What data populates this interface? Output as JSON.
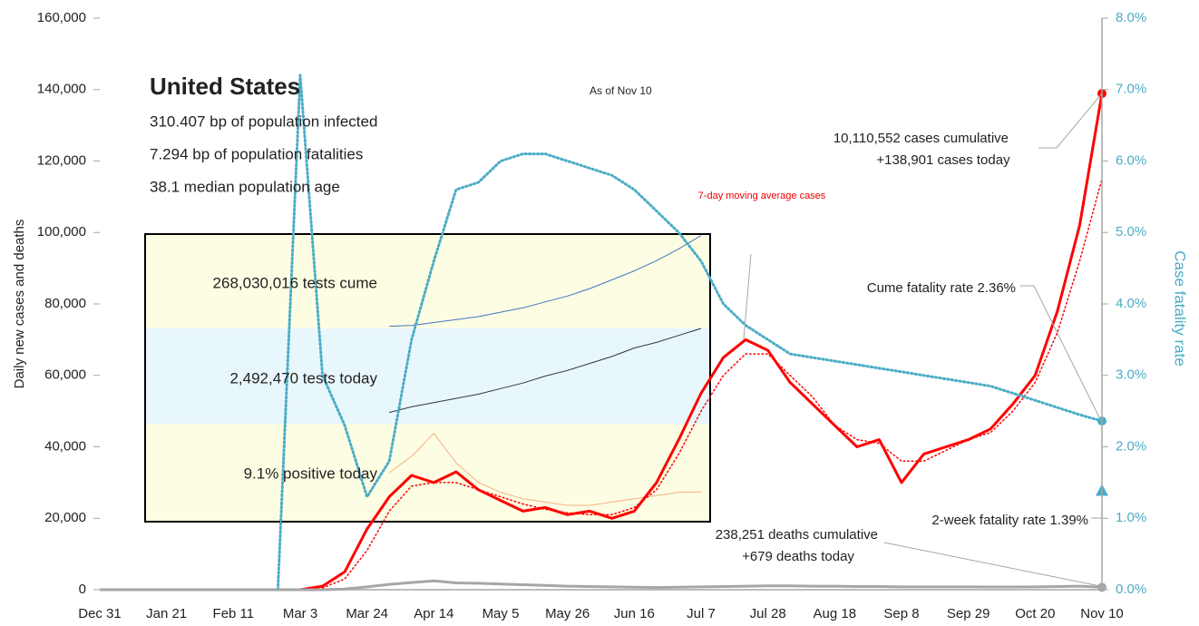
{
  "chart_data": {
    "type": "line",
    "ylabel": "Daily new cases and deaths",
    "y2label": "Case fatality rate",
    "categories": [
      "Dec 31",
      null,
      null,
      "Jan 21",
      null,
      null,
      "Feb 11",
      null,
      null,
      "Mar 3",
      null,
      null,
      "Mar 24",
      null,
      null,
      "Apr 14",
      null,
      null,
      "May 5",
      null,
      null,
      "May 26",
      null,
      null,
      "Jun 16",
      null,
      null,
      "Jul 7",
      null,
      null,
      "Jul 28",
      null,
      null,
      "Aug 18",
      null,
      null,
      "Sep 8",
      null,
      null,
      "Sep 29",
      null,
      null,
      "Oct 20",
      null,
      null,
      "Nov 10"
    ],
    "ylim": [
      0,
      160000
    ],
    "yticks": [
      {
        "value": 0,
        "label": "0"
      },
      {
        "value": 20000,
        "label": "20,000"
      },
      {
        "value": 40000,
        "label": "40,000"
      },
      {
        "value": 60000,
        "label": "60,000"
      },
      {
        "value": 80000,
        "label": "80,000"
      },
      {
        "value": 100000,
        "label": "100,000"
      },
      {
        "value": 120000,
        "label": "120,000"
      },
      {
        "value": 140000,
        "label": "140,000"
      },
      {
        "value": 160000,
        "label": "160,000"
      }
    ],
    "y2lim": [
      0,
      8
    ],
    "y2ticks": [
      {
        "value": 0,
        "label": "0.0%"
      },
      {
        "value": 1,
        "label": "1.0%"
      },
      {
        "value": 2,
        "label": "2.0%"
      },
      {
        "value": 3,
        "label": "3.0%"
      },
      {
        "value": 4,
        "label": "4.0%"
      },
      {
        "value": 5,
        "label": "5.0%"
      },
      {
        "value": 6,
        "label": "6.0%"
      },
      {
        "value": 7,
        "label": "7.0%"
      },
      {
        "value": 8,
        "label": "8.0%"
      }
    ],
    "series": [
      {
        "color": "#ff0000",
        "style": "solid",
        "values": [
          0,
          0,
          0,
          0,
          0,
          0,
          0,
          0,
          0,
          0,
          1000,
          5000,
          17000,
          26000,
          32000,
          30000,
          33000,
          28000,
          25000,
          22000,
          23000,
          21000,
          22000,
          20000,
          22000,
          30000,
          42000,
          55000,
          65000,
          70000,
          67000,
          58000,
          52000,
          46000,
          40000,
          42000,
          30000,
          38000,
          40000,
          42000,
          45000,
          52000,
          60000,
          78000,
          102000,
          138901
        ]
      },
      {
        "name": "7-day moving average cases",
        "color": "#ff0000",
        "style": "dotted",
        "values": [
          null,
          null,
          null,
          null,
          null,
          null,
          null,
          null,
          null,
          null,
          500,
          3000,
          11000,
          22000,
          29000,
          30000,
          30000,
          28000,
          26000,
          24000,
          22500,
          21500,
          21000,
          21000,
          23000,
          28000,
          38000,
          50000,
          60000,
          66000,
          66000,
          60000,
          54000,
          46000,
          42000,
          41000,
          36000,
          36000,
          39000,
          42000,
          44000,
          50000,
          58000,
          72000,
          92000,
          115000
        ]
      },
      {
        "color": "#a6a6a6",
        "style": "solid",
        "values": [
          0,
          0,
          0,
          0,
          0,
          0,
          0,
          0,
          0,
          0,
          0,
          200,
          800,
          1500,
          2000,
          2500,
          1900,
          1800,
          1600,
          1400,
          1200,
          1000,
          900,
          800,
          700,
          600,
          700,
          800,
          900,
          1000,
          1100,
          1100,
          1000,
          1000,
          900,
          900,
          800,
          800,
          800,
          800,
          750,
          750,
          800,
          900,
          1000,
          679
        ]
      },
      {
        "color": "#4bacc6",
        "style": "dotted",
        "axis": "y2",
        "values": [
          null,
          null,
          null,
          null,
          null,
          null,
          null,
          null,
          0,
          7.2,
          3.0,
          2.3,
          1.3,
          1.8,
          3.5,
          4.6,
          5.6,
          5.7,
          6.0,
          6.1,
          6.1,
          6.0,
          5.9,
          5.8,
          5.6,
          5.3,
          5.0,
          4.6,
          4.0,
          3.7,
          3.5,
          3.3,
          3.25,
          3.2,
          3.15,
          3.1,
          3.05,
          3.0,
          2.95,
          2.9,
          2.85,
          2.75,
          2.65,
          2.55,
          2.45,
          2.36
        ]
      }
    ],
    "two_week_fatality_rate": 1.39,
    "inset": {
      "series": [
        {
          "color": "#4472c4",
          "ylim": [
            0,
            64
          ],
          "values": [
            null,
            null,
            null,
            null,
            null,
            null,
            null,
            null,
            null,
            null,
            null,
            null,
            null,
            1.5,
            2,
            4,
            6,
            8,
            11,
            14,
            18,
            22,
            27,
            33,
            39,
            46,
            54,
            63,
            null,
            null,
            null,
            null,
            null,
            null,
            null,
            null,
            null,
            null,
            null,
            null,
            null,
            null,
            null,
            null,
            null,
            null
          ]
        },
        {
          "color": "#2f3640",
          "ylim": [
            0,
            700
          ],
          "values": [
            null,
            null,
            null,
            null,
            null,
            null,
            null,
            null,
            null,
            null,
            null,
            null,
            null,
            100,
            140,
            170,
            200,
            230,
            270,
            310,
            360,
            400,
            450,
            500,
            560,
            600,
            650,
            700,
            null,
            null,
            null,
            null,
            null,
            null,
            null,
            null,
            null,
            null,
            null,
            null,
            null,
            null,
            null,
            null,
            null,
            null
          ]
        },
        {
          "color": "#f4b183",
          "ylim": [
            0,
            30
          ],
          "values": [
            null,
            null,
            null,
            null,
            null,
            null,
            null,
            null,
            null,
            null,
            null,
            null,
            null,
            15,
            20,
            27,
            18,
            12,
            9,
            7,
            6,
            5,
            5,
            6,
            7,
            8,
            9,
            9.1,
            null,
            null,
            null,
            null,
            null,
            null,
            null,
            null,
            null,
            null,
            null,
            null,
            null,
            null,
            null,
            null,
            null,
            null
          ]
        }
      ]
    },
    "annotations": {
      "country": "United States",
      "infected": "310.407 bp of population infected",
      "fatalities": "7.294 bp of population fatalities",
      "age": "38.1 median population age",
      "as_of": "As of Nov 10",
      "cases_cum": "10,110,552 cases cumulative",
      "cases_today": "+138,901 cases today",
      "cume_rate": "Cume fatality rate 2.36%",
      "two_week_rate": "2-week fatality rate 1.39%",
      "deaths_cum": "238,251 deaths cumulative",
      "deaths_today": "+679 deaths today",
      "tests_cume": "268,030,016 tests cume",
      "tests_today": "2,492,470 tests today",
      "positive": "9.1% positive today"
    }
  }
}
